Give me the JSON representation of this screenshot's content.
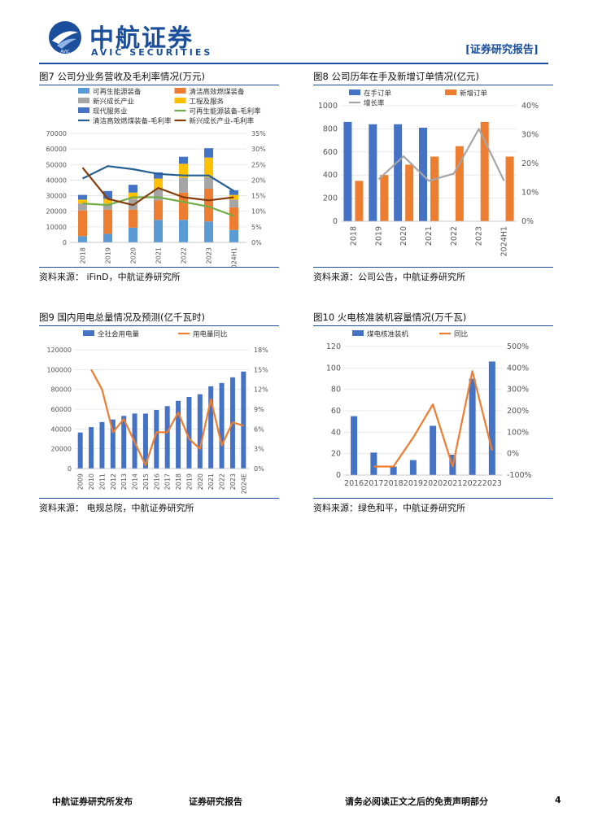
{
  "header": {
    "logo_cn": "中航证券",
    "logo_en": "AVIC SECURITIES",
    "logo_mark": "AVIC",
    "report_tag": "[证券研究报告]"
  },
  "footer": {
    "publisher": "中航证券研究所发布",
    "report_type": "证券研究报告",
    "disclaimer": "请务必阅读正文之后的免责声明部分",
    "page_number": "4"
  },
  "fig7": {
    "title": "图7 公司分业务营收及毛利率情况(万元)",
    "source": "资料来源： iFinD，中航证券研究所"
  },
  "fig8": {
    "title": "图8 公司历年在手及新增订单情况(亿元)",
    "source": "资料来源：公司公告，中航证券研究所"
  },
  "fig9": {
    "title": "图9 国内用电总量情况及预测(亿千瓦时)",
    "source": "资料来源： 电规总院，中航证券研究所"
  },
  "fig10": {
    "title": "图10 火电核准装机容量情况(万千瓦)",
    "source": "资料来源：绿色和平，中航证券研究所"
  },
  "colors": {
    "blue": "#4472c4",
    "orange": "#ed7d31",
    "gray": "#a5a5a5",
    "yellow": "#ffc000",
    "lightblue": "#5b9bd5",
    "green": "#70ad47",
    "navy": "#255e91",
    "brown": "#843c0c"
  },
  "chart_data": [
    {
      "id": "fig7",
      "type": "bar",
      "stacked": true,
      "categories": [
        "2018",
        "2019",
        "2020",
        "2021",
        "2022",
        "2023",
        "2024H1"
      ],
      "series": [
        {
          "name": "可再生能源装备",
          "kind": "bar",
          "axis": "left",
          "color": "#5b9bd5",
          "values": [
            4000,
            5500,
            9500,
            14500,
            14500,
            13500,
            8000
          ]
        },
        {
          "name": "清洁高效燃煤装备",
          "kind": "bar",
          "axis": "left",
          "color": "#ed7d31",
          "values": [
            16500,
            15500,
            11500,
            12500,
            17500,
            21000,
            14500
          ]
        },
        {
          "name": "新兴成长产业",
          "kind": "bar",
          "axis": "left",
          "color": "#a5a5a5",
          "values": [
            4500,
            4000,
            7000,
            7000,
            9500,
            7500,
            5000
          ]
        },
        {
          "name": "工程及服务",
          "kind": "bar",
          "axis": "left",
          "color": "#ffc000",
          "values": [
            2500,
            3000,
            4000,
            7000,
            9000,
            12500,
            3000
          ]
        },
        {
          "name": "现代服务业",
          "kind": "bar",
          "axis": "left",
          "color": "#4472c4",
          "values": [
            3000,
            5000,
            5000,
            4000,
            4500,
            6000,
            3000
          ]
        },
        {
          "name": "可再生能源装备-毛利率",
          "kind": "line",
          "axis": "right",
          "color": "#70ad47",
          "values": [
            12.5,
            12.0,
            14.5,
            14.5,
            13.0,
            11.5,
            8.5
          ]
        },
        {
          "name": "清洁高效燃煤装备-毛利率",
          "kind": "line",
          "axis": "right",
          "color": "#255e91",
          "values": [
            20.5,
            24.5,
            23.5,
            22.0,
            21.5,
            21.5,
            16.5
          ]
        },
        {
          "name": "新兴成长产业-毛利率",
          "kind": "line",
          "axis": "right",
          "color": "#843c0c",
          "values": [
            24.0,
            14.0,
            12.0,
            17.5,
            14.5,
            13.5,
            14.5
          ]
        }
      ],
      "y_left": {
        "min": 0,
        "max": 70000,
        "ticks": [
          "0",
          "10000",
          "20000",
          "30000",
          "40000",
          "50000",
          "60000",
          "70000"
        ]
      },
      "y_right": {
        "min": 0,
        "max": 35,
        "ticks": [
          "0%",
          "5%",
          "10%",
          "15%",
          "20%",
          "25%",
          "30%",
          "35%"
        ]
      },
      "legend": "top, three columns"
    },
    {
      "id": "fig8",
      "type": "bar",
      "categories": [
        "2018",
        "2019",
        "2020",
        "2021",
        "2022",
        "2023",
        "2024H1"
      ],
      "series": [
        {
          "name": "在手订单",
          "kind": "bar",
          "axis": "left",
          "color": "#4472c4",
          "values": [
            860,
            840,
            840,
            810,
            null,
            null,
            null
          ]
        },
        {
          "name": "新增订单",
          "kind": "bar",
          "axis": "left",
          "color": "#ed7d31",
          "values": [
            350,
            400,
            490,
            560,
            650,
            860,
            560
          ]
        },
        {
          "name": "增长率",
          "kind": "line",
          "axis": "right",
          "color": "#a5a5a5",
          "values": [
            null,
            14.5,
            22.5,
            14.0,
            16.5,
            32.0,
            14.0
          ]
        }
      ],
      "y_left": {
        "min": 0,
        "max": 1000,
        "ticks": [
          "0",
          "200",
          "400",
          "600",
          "800",
          "1000"
        ]
      },
      "y_right": {
        "min": 0,
        "max": 40,
        "ticks": [
          "0%",
          "10%",
          "20%",
          "30%",
          "40%"
        ]
      },
      "legend": "top"
    },
    {
      "id": "fig9",
      "type": "bar",
      "categories": [
        "2009",
        "2010",
        "2011",
        "2012",
        "2013",
        "2014",
        "2015",
        "2016",
        "2017",
        "2018",
        "2019",
        "2020",
        "2021",
        "2022",
        "2023",
        "2024E"
      ],
      "series": [
        {
          "name": "全社会用电量",
          "kind": "bar",
          "axis": "left",
          "color": "#4472c4",
          "values": [
            36400,
            41900,
            47000,
            49600,
            53200,
            55600,
            55500,
            59200,
            63100,
            68400,
            72300,
            75100,
            83100,
            86400,
            92200,
            98000
          ]
        },
        {
          "name": "用电量同比",
          "kind": "line",
          "axis": "right",
          "color": "#ed7d31",
          "values": [
            null,
            15.0,
            12.0,
            5.5,
            7.5,
            4.0,
            0.5,
            5.5,
            5.5,
            8.5,
            4.5,
            3.0,
            10.5,
            3.5,
            7.0,
            6.5
          ]
        }
      ],
      "y_left": {
        "min": 0,
        "max": 120000,
        "ticks": [
          "0",
          "20000",
          "40000",
          "60000",
          "80000",
          "100000",
          "120000"
        ]
      },
      "y_right": {
        "min": 0,
        "max": 18,
        "ticks": [
          "0%",
          "3%",
          "6%",
          "9%",
          "12%",
          "15%",
          "18%"
        ]
      },
      "legend": "top"
    },
    {
      "id": "fig10",
      "type": "bar",
      "categories": [
        "2016",
        "2017",
        "2018",
        "2019",
        "2020",
        "2021",
        "2022",
        "2023"
      ],
      "series": [
        {
          "name": "煤电核准装机",
          "kind": "bar",
          "axis": "left",
          "color": "#4472c4",
          "values": [
            55,
            21,
            8,
            14,
            46,
            19,
            90,
            106
          ]
        },
        {
          "name": "同比",
          "kind": "line",
          "axis": "right",
          "color": "#ed7d31",
          "values": [
            null,
            -60,
            -60,
            75,
            230,
            -60,
            385,
            15
          ]
        }
      ],
      "y_left": {
        "min": 0,
        "max": 120,
        "ticks": [
          "0",
          "20",
          "40",
          "60",
          "80",
          "100",
          "120"
        ]
      },
      "y_right": {
        "min": -100,
        "max": 500,
        "ticks": [
          "-100%",
          "0%",
          "100%",
          "200%",
          "300%",
          "400%",
          "500%"
        ]
      },
      "legend": "top"
    }
  ]
}
